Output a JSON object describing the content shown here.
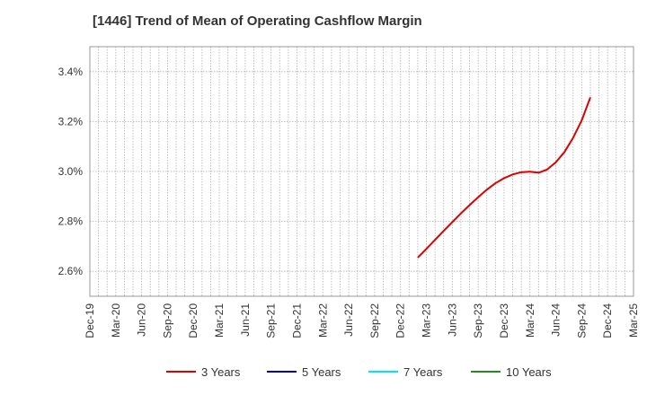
{
  "chart_data": {
    "type": "line",
    "title": "[1446]  Trend of Mean of Operating Cashflow Margin",
    "xlabel": "",
    "ylabel": "",
    "x_ticks": [
      "Dec-19",
      "Mar-20",
      "Jun-20",
      "Sep-20",
      "Dec-20",
      "Mar-21",
      "Jun-21",
      "Sep-21",
      "Dec-21",
      "Mar-22",
      "Jun-22",
      "Sep-22",
      "Dec-22",
      "Mar-23",
      "Jun-23",
      "Sep-23",
      "Dec-23",
      "Mar-24",
      "Jun-24",
      "Sep-24",
      "Dec-24",
      "Mar-25"
    ],
    "y_ticks": [
      "2.6%",
      "2.8%",
      "3.0%",
      "3.2%",
      "3.4%"
    ],
    "y_tick_values": [
      2.6,
      2.8,
      3.0,
      3.2,
      3.4
    ],
    "ylim": [
      2.5,
      3.5
    ],
    "grid": true,
    "legend_position": "bottom",
    "series": [
      {
        "name": "3 Years",
        "color": "#dd0000",
        "points": [
          [
            "Feb-23",
            2.655
          ],
          [
            "Mar-23",
            2.69
          ],
          [
            "Apr-23",
            2.726
          ],
          [
            "May-23",
            2.762
          ],
          [
            "Jun-23",
            2.797
          ],
          [
            "Jul-23",
            2.832
          ],
          [
            "Aug-23",
            2.865
          ],
          [
            "Sep-23",
            2.897
          ],
          [
            "Oct-23",
            2.927
          ],
          [
            "Nov-23",
            2.953
          ],
          [
            "Dec-23",
            2.973
          ],
          [
            "Jan-24",
            2.988
          ],
          [
            "Feb-24",
            2.997
          ],
          [
            "Mar-24",
            2.999
          ],
          [
            "Apr-24",
            2.995
          ],
          [
            "May-24",
            3.008
          ],
          [
            "Jun-24",
            3.037
          ],
          [
            "Jul-24",
            3.078
          ],
          [
            "Aug-24",
            3.135
          ],
          [
            "Sep-24",
            3.205
          ],
          [
            "Oct-24",
            3.297
          ]
        ]
      },
      {
        "name": "5 Years",
        "color": "#0000cc",
        "points": []
      },
      {
        "name": "7 Years",
        "color": "#00e5ee",
        "points": []
      },
      {
        "name": "10 Years",
        "color": "#228b22",
        "points": []
      }
    ]
  }
}
